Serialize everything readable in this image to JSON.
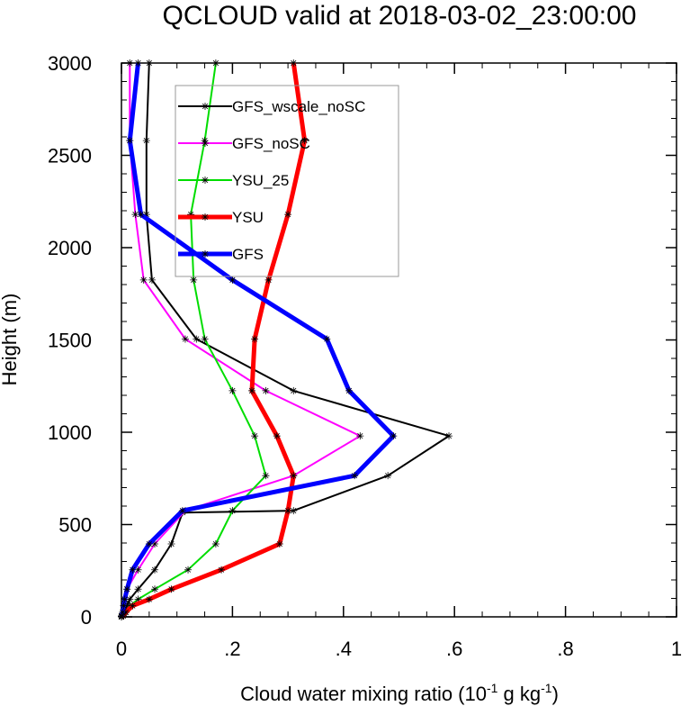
{
  "chart_data": {
    "type": "line",
    "title": "QCLOUD valid at 2018-03-02_23:00:00",
    "xlabel": {
      "main": "Cloud water mixing ratio (10",
      "exp1": "-1",
      "mid": " g kg",
      "exp2": "-1",
      "end": ")"
    },
    "ylabel": "Height (m)",
    "xlim": [
      0,
      1
    ],
    "ylim": [
      0,
      3000
    ],
    "x_ticks": [
      {
        "value": 0,
        "label": "0"
      },
      {
        "value": 0.2,
        "label": ".2"
      },
      {
        "value": 0.4,
        "label": ".4"
      },
      {
        "value": 0.6,
        "label": ".6"
      },
      {
        "value": 0.8,
        "label": ".8"
      },
      {
        "value": 1,
        "label": "1"
      }
    ],
    "y_ticks": [
      {
        "value": 0,
        "label": "0"
      },
      {
        "value": 500,
        "label": "500"
      },
      {
        "value": 1000,
        "label": "1000"
      },
      {
        "value": 1500,
        "label": "1500"
      },
      {
        "value": 2000,
        "label": "2000"
      },
      {
        "value": 2500,
        "label": "2500"
      },
      {
        "value": 3000,
        "label": "3000"
      }
    ],
    "grid": false,
    "legend_position": "top-left",
    "series": [
      {
        "name": "GFS_wscale_noSC",
        "color": "#000000",
        "linewidth": 2,
        "points": [
          [
            0.0,
            0
          ],
          [
            0.0,
            5
          ],
          [
            0.005,
            25
          ],
          [
            0.01,
            60
          ],
          [
            0.015,
            95
          ],
          [
            0.03,
            150
          ],
          [
            0.06,
            255
          ],
          [
            0.09,
            395
          ],
          [
            0.11,
            565
          ],
          [
            0.31,
            575
          ],
          [
            0.48,
            765
          ],
          [
            0.59,
            980
          ],
          [
            0.31,
            1225
          ],
          [
            0.135,
            1505
          ],
          [
            0.055,
            1825
          ],
          [
            0.045,
            2180
          ],
          [
            0.045,
            2580
          ],
          [
            0.05,
            3000
          ]
        ]
      },
      {
        "name": "GFS_noSC",
        "color": "#ff00ff",
        "linewidth": 2,
        "points": [
          [
            0.0,
            0
          ],
          [
            0.0,
            5
          ],
          [
            0.003,
            25
          ],
          [
            0.005,
            60
          ],
          [
            0.007,
            95
          ],
          [
            0.01,
            150
          ],
          [
            0.03,
            255
          ],
          [
            0.06,
            395
          ],
          [
            0.115,
            575
          ],
          [
            0.31,
            765
          ],
          [
            0.43,
            980
          ],
          [
            0.26,
            1225
          ],
          [
            0.115,
            1505
          ],
          [
            0.04,
            1825
          ],
          [
            0.025,
            2180
          ],
          [
            0.015,
            2580
          ],
          [
            0.015,
            3000
          ]
        ]
      },
      {
        "name": "YSU_25",
        "color": "#00dd00",
        "linewidth": 2,
        "points": [
          [
            0.0,
            0
          ],
          [
            0.003,
            5
          ],
          [
            0.007,
            25
          ],
          [
            0.015,
            60
          ],
          [
            0.03,
            95
          ],
          [
            0.06,
            150
          ],
          [
            0.12,
            255
          ],
          [
            0.17,
            395
          ],
          [
            0.2,
            575
          ],
          [
            0.26,
            765
          ],
          [
            0.24,
            980
          ],
          [
            0.2,
            1225
          ],
          [
            0.15,
            1505
          ],
          [
            0.13,
            1825
          ],
          [
            0.125,
            2180
          ],
          [
            0.15,
            2580
          ],
          [
            0.17,
            3000
          ]
        ]
      },
      {
        "name": "YSU",
        "color": "#ff0000",
        "linewidth": 5,
        "points": [
          [
            0.0,
            0
          ],
          [
            0.003,
            5
          ],
          [
            0.008,
            25
          ],
          [
            0.02,
            60
          ],
          [
            0.05,
            95
          ],
          [
            0.09,
            150
          ],
          [
            0.18,
            255
          ],
          [
            0.285,
            395
          ],
          [
            0.3,
            575
          ],
          [
            0.31,
            765
          ],
          [
            0.28,
            980
          ],
          [
            0.235,
            1225
          ],
          [
            0.24,
            1505
          ],
          [
            0.265,
            1825
          ],
          [
            0.3,
            2180
          ],
          [
            0.33,
            2580
          ],
          [
            0.31,
            3000
          ]
        ]
      },
      {
        "name": "GFS",
        "color": "#0000ff",
        "linewidth": 5,
        "points": [
          [
            0.0,
            0
          ],
          [
            0.0,
            5
          ],
          [
            0.002,
            25
          ],
          [
            0.004,
            60
          ],
          [
            0.006,
            95
          ],
          [
            0.01,
            150
          ],
          [
            0.02,
            255
          ],
          [
            0.05,
            395
          ],
          [
            0.11,
            575
          ],
          [
            0.42,
            765
          ],
          [
            0.49,
            980
          ],
          [
            0.41,
            1225
          ],
          [
            0.37,
            1505
          ],
          [
            0.2,
            1825
          ],
          [
            0.035,
            2180
          ],
          [
            0.015,
            2580
          ],
          [
            0.03,
            3000
          ]
        ]
      }
    ]
  }
}
